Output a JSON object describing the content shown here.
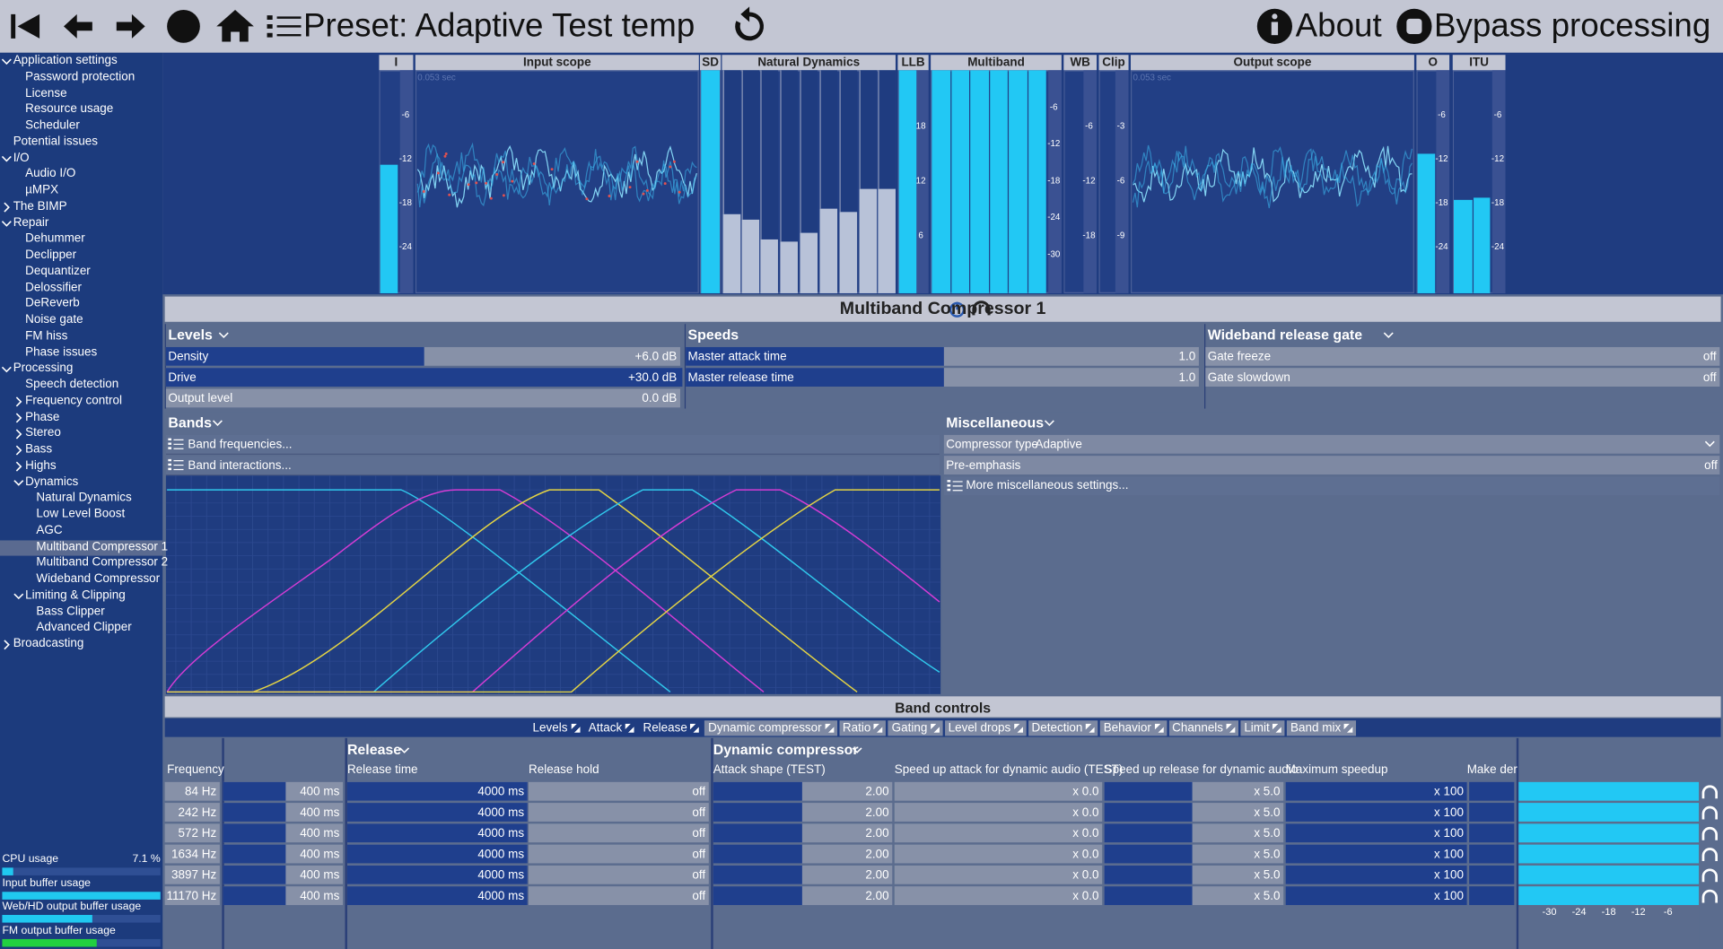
{
  "toolbar": {
    "preset": "Preset: Adaptive Test temp",
    "about": "About",
    "bypass": "Bypass processing"
  },
  "sidebar": {
    "items": [
      {
        "label": "Application settings",
        "level": 0,
        "expanded": true
      },
      {
        "label": "Password protection",
        "level": 1
      },
      {
        "label": "License",
        "level": 1
      },
      {
        "label": "Resource usage",
        "level": 1
      },
      {
        "label": "Scheduler",
        "level": 1
      },
      {
        "label": "Potential issues",
        "level": 0
      },
      {
        "label": "I/O",
        "level": 0,
        "expanded": true
      },
      {
        "label": "Audio I/O",
        "level": 1
      },
      {
        "label": "µMPX",
        "level": 1
      },
      {
        "label": "The BIMP",
        "level": 0,
        "expanded": false
      },
      {
        "label": "Repair",
        "level": 0,
        "expanded": true
      },
      {
        "label": "Dehummer",
        "level": 1
      },
      {
        "label": "Declipper",
        "level": 1
      },
      {
        "label": "Dequantizer",
        "level": 1
      },
      {
        "label": "Delossifier",
        "level": 1
      },
      {
        "label": "DeReverb",
        "level": 1
      },
      {
        "label": "Noise gate",
        "level": 1
      },
      {
        "label": "FM hiss",
        "level": 1
      },
      {
        "label": "Phase issues",
        "level": 1
      },
      {
        "label": "Processing",
        "level": 0,
        "expanded": true
      },
      {
        "label": "Speech detection",
        "level": 1
      },
      {
        "label": "Frequency control",
        "level": 1,
        "expanded": false
      },
      {
        "label": "Phase",
        "level": 1,
        "expanded": false
      },
      {
        "label": "Stereo",
        "level": 1,
        "expanded": false
      },
      {
        "label": "Bass",
        "level": 1,
        "expanded": false
      },
      {
        "label": "Highs",
        "level": 1,
        "expanded": false
      },
      {
        "label": "Dynamics",
        "level": 1,
        "expanded": true
      },
      {
        "label": "Natural Dynamics",
        "level": 2
      },
      {
        "label": "Low Level Boost",
        "level": 2
      },
      {
        "label": "AGC",
        "level": 2
      },
      {
        "label": "Multiband Compressor 1",
        "level": 2,
        "selected": true
      },
      {
        "label": "Multiband Compressor 2",
        "level": 2
      },
      {
        "label": "Wideband Compressor",
        "level": 2
      },
      {
        "label": "Limiting & Clipping",
        "level": 1,
        "expanded": true
      },
      {
        "label": "Bass Clipper",
        "level": 2
      },
      {
        "label": "Advanced Clipper",
        "level": 2
      },
      {
        "label": "Broadcasting",
        "level": 0,
        "expanded": false
      }
    ],
    "status": [
      {
        "label": "CPU usage",
        "value": "7.1 %"
      },
      {
        "label": "Input buffer usage"
      },
      {
        "label": "Web/HD output buffer usage"
      },
      {
        "label": "FM output buffer usage"
      }
    ]
  },
  "meters": [
    {
      "title": "I",
      "scale": [
        -6,
        -12,
        -18,
        -24
      ]
    },
    {
      "title": "Input scope",
      "time": "0.053 sec"
    },
    {
      "title": "SD"
    },
    {
      "title": "Natural Dynamics"
    },
    {
      "title": "LLB",
      "scale": [
        18,
        12,
        6
      ]
    },
    {
      "title": "Multiband",
      "scale": [
        -6,
        -12,
        -18,
        -24,
        -30
      ]
    },
    {
      "title": "WB",
      "scale": [
        -6,
        -12,
        -18
      ]
    },
    {
      "title": "Clip",
      "scale": [
        -3,
        -6,
        -9
      ]
    },
    {
      "title": "Output scope",
      "time": "0.053 sec"
    },
    {
      "title": "O",
      "scale": [
        -6,
        -12,
        -18,
        -24
      ]
    },
    {
      "title": "ITU",
      "scale": [
        -6,
        -12,
        -18,
        -24
      ]
    }
  ],
  "module": {
    "title": "Multiband Compressor 1"
  },
  "panels": {
    "levels": {
      "title": "Levels",
      "rows": [
        {
          "label": "Density",
          "value": "+6.0 dB"
        },
        {
          "label": "Drive",
          "value": "+30.0 dB"
        },
        {
          "label": "Output level",
          "value": "0.0 dB"
        }
      ]
    },
    "speeds": {
      "title": "Speeds",
      "rows": [
        {
          "label": "Master attack time",
          "value": "1.0"
        },
        {
          "label": "Master release time",
          "value": "1.0"
        }
      ]
    },
    "gate": {
      "title": "Wideband release gate",
      "rows": [
        {
          "label": "Gate freeze",
          "value": "off"
        },
        {
          "label": "Gate slowdown",
          "value": "off"
        }
      ]
    },
    "bands": {
      "title": "Bands",
      "items": [
        "Band frequencies...",
        "Band interactions..."
      ]
    },
    "misc": {
      "title": "Miscellaneous",
      "rows": [
        {
          "label": "Compressor type",
          "value": "Adaptive"
        },
        {
          "label": "Pre-emphasis",
          "value": "off"
        }
      ],
      "more": "More miscellaneous settings..."
    }
  },
  "band_controls": {
    "title": "Band controls",
    "tabs": [
      {
        "label": "Levels",
        "selected": true
      },
      {
        "label": "Attack",
        "selected": true
      },
      {
        "label": "Release",
        "selected": true
      },
      {
        "label": "Dynamic compressor"
      },
      {
        "label": "Ratio"
      },
      {
        "label": "Gating"
      },
      {
        "label": "Level drops"
      },
      {
        "label": "Detection"
      },
      {
        "label": "Behavior"
      },
      {
        "label": "Channels"
      },
      {
        "label": "Limit"
      },
      {
        "label": "Band mix"
      }
    ],
    "groups": [
      "Release",
      "Dynamic compressor"
    ],
    "frequency_header": "Frequency",
    "columns": [
      "Release time",
      "Release hold",
      "Attack shape (TEST)",
      "Speed up attack for dynamic audio (TEST)",
      "Speed up release for dynamic audio",
      "Maximum speedup",
      "Make der"
    ],
    "rows": [
      [
        "84 Hz",
        "400 ms",
        "4000 ms",
        "off",
        "2.00",
        "x 0.0",
        "x 5.0",
        "x 100"
      ],
      [
        "242 Hz",
        "400 ms",
        "4000 ms",
        "off",
        "2.00",
        "x 0.0",
        "x 5.0",
        "x 100"
      ],
      [
        "572 Hz",
        "400 ms",
        "4000 ms",
        "off",
        "2.00",
        "x 0.0",
        "x 5.0",
        "x 100"
      ],
      [
        "1634 Hz",
        "400 ms",
        "4000 ms",
        "off",
        "2.00",
        "x 0.0",
        "x 5.0",
        "x 100"
      ],
      [
        "3897 Hz",
        "400 ms",
        "4000 ms",
        "off",
        "2.00",
        "x 0.0",
        "x 5.0",
        "x 100"
      ],
      [
        "11170 Hz",
        "400 ms",
        "4000 ms",
        "off",
        "2.00",
        "x 0.0",
        "x 5.0",
        "x 100"
      ]
    ],
    "meter_scale": [
      -30,
      -24,
      -18,
      -12,
      -6
    ]
  }
}
